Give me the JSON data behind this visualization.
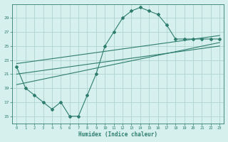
{
  "main_x": [
    0,
    1,
    2,
    3,
    4,
    5,
    6,
    7,
    8,
    9,
    10,
    11,
    12,
    13,
    14,
    15,
    16,
    17,
    18,
    19,
    20,
    21,
    22,
    23
  ],
  "main_y": [
    22,
    19,
    18,
    17,
    16,
    17,
    15,
    15,
    18,
    21,
    25,
    27,
    29,
    30,
    30.5,
    30,
    29.5,
    28,
    26,
    26,
    26,
    26,
    26,
    26
  ],
  "trend1_x": [
    0,
    23
  ],
  "trend1_y": [
    19.5,
    25.5
  ],
  "trend2_x": [
    0,
    23
  ],
  "trend2_y": [
    21.0,
    25.0
  ],
  "trend3_x": [
    0,
    23
  ],
  "trend3_y": [
    22.5,
    26.5
  ],
  "line_color": "#2e7d6e",
  "bg_color": "#d6f0ee",
  "grid_color": "#b0d4d0",
  "xlabel": "Humidex (Indice chaleur)",
  "xlim": [
    -0.5,
    23.5
  ],
  "ylim": [
    14,
    31
  ],
  "yticks": [
    15,
    17,
    19,
    21,
    23,
    25,
    27,
    29
  ],
  "xticks": [
    0,
    1,
    2,
    3,
    4,
    5,
    6,
    7,
    8,
    9,
    10,
    11,
    12,
    13,
    14,
    15,
    16,
    17,
    18,
    19,
    20,
    21,
    22,
    23
  ]
}
